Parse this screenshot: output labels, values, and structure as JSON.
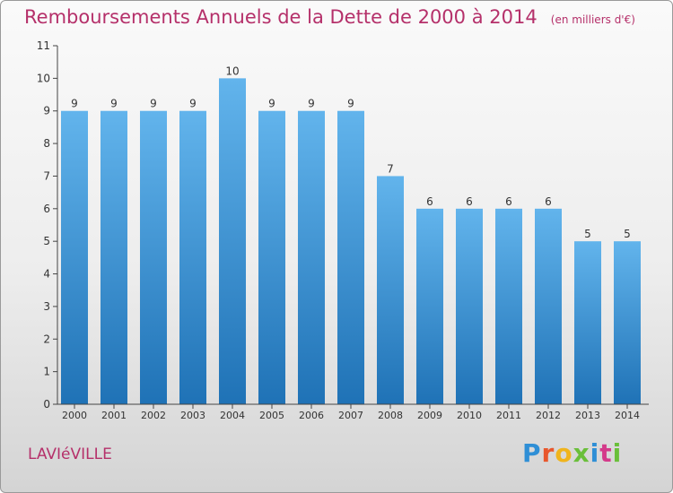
{
  "header": {
    "title": "Remboursements Annuels de la Dette de 2000 à 2014",
    "unit": "(en milliers d'€)"
  },
  "footer": {
    "commune": "LAVIéVILLE",
    "logo_text": "Proxiti"
  },
  "colors": {
    "title": "#b5306a",
    "bar_top": "#62b4ec",
    "bar_bottom": "#1f72b6",
    "axis": "#444444"
  },
  "chart_data": {
    "type": "bar",
    "title": "Remboursements Annuels de la Dette de 2000 à 2014",
    "ylabel": "en milliers d'€",
    "xlabel": "",
    "categories": [
      "2000",
      "2001",
      "2002",
      "2003",
      "2004",
      "2005",
      "2006",
      "2007",
      "2008",
      "2009",
      "2010",
      "2011",
      "2012",
      "2013",
      "2014"
    ],
    "values": [
      9,
      9,
      9,
      9,
      10,
      9,
      9,
      9,
      7,
      6,
      6,
      6,
      6,
      5,
      5
    ],
    "ylim": [
      0,
      11
    ],
    "yticks": [
      0,
      1,
      2,
      3,
      4,
      5,
      6,
      7,
      8,
      9,
      10,
      11
    ],
    "grid": false,
    "data_labels": true
  }
}
